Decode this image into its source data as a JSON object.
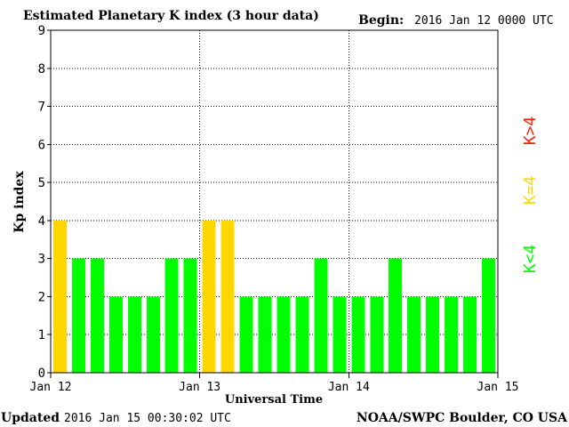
{
  "header": {
    "title": "Estimated Planetary K index (3 hour data)",
    "begin_label": "Begin:",
    "begin_value": "2016 Jan 12 0000 UTC"
  },
  "footer": {
    "updated_label": "Updated",
    "updated_value": "2016 Jan 15 00:30:02 UTC",
    "source": "NOAA/SWPC Boulder, CO USA"
  },
  "legend": {
    "high_label": "K>4",
    "equal_label": "K=4",
    "low_label": "K<4"
  },
  "colors": {
    "low": "#00ff00",
    "equal": "#ffd700",
    "high": "#ff2000",
    "grid": "#000000",
    "axis": "#000000"
  },
  "chart_data": {
    "type": "bar",
    "title": "Estimated Planetary K index (3 hour data)",
    "xlabel": "Universal Time",
    "ylabel": "Kp index",
    "ylim": [
      0,
      9
    ],
    "yticks": [
      "0",
      "1",
      "2",
      "3",
      "4",
      "5",
      "6",
      "7",
      "8",
      "9"
    ],
    "xticks": [
      "Jan 12",
      "Jan 13",
      "Jan 14",
      "Jan 15"
    ],
    "grid": true,
    "legend_position": "right",
    "categories": [
      "Jan 12 00",
      "Jan 12 03",
      "Jan 12 06",
      "Jan 12 09",
      "Jan 12 12",
      "Jan 12 15",
      "Jan 12 18",
      "Jan 12 21",
      "Jan 13 00",
      "Jan 13 03",
      "Jan 13 06",
      "Jan 13 09",
      "Jan 13 12",
      "Jan 13 15",
      "Jan 13 18",
      "Jan 13 21",
      "Jan 14 00",
      "Jan 14 03",
      "Jan 14 06",
      "Jan 14 09",
      "Jan 14 12",
      "Jan 14 15",
      "Jan 14 18",
      "Jan 14 21"
    ],
    "values": [
      4,
      3,
      3,
      2,
      2,
      2,
      3,
      3,
      4,
      4,
      2,
      2,
      2,
      2,
      3,
      2,
      2,
      2,
      3,
      2,
      2,
      2,
      2,
      3
    ]
  }
}
